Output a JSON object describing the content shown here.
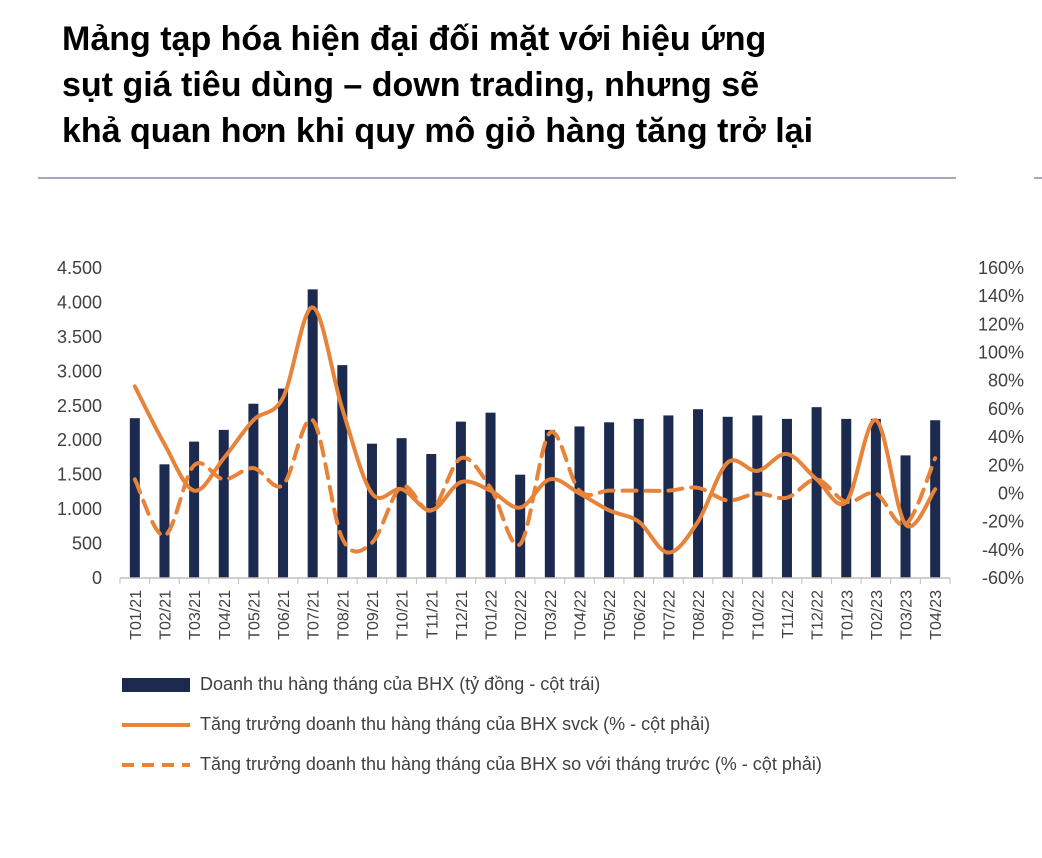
{
  "title_lines": [
    "Mảng tạp hóa hiện đại đối mặt với hiệu ứng",
    "sụt giá tiêu dùng – down trading, nhưng sẽ",
    "khả quan hơn khi quy mô giỏ hàng tăng trở lại"
  ],
  "chart_data": {
    "type": "bar",
    "categories": [
      "T01/21",
      "T02/21",
      "T03/21",
      "T04/21",
      "T05/21",
      "T06/21",
      "T07/21",
      "T08/21",
      "T09/21",
      "T10/21",
      "T11/21",
      "T12/21",
      "T01/22",
      "T02/22",
      "T03/22",
      "T04/22",
      "T05/22",
      "T06/22",
      "T07/22",
      "T08/22",
      "T09/22",
      "T10/22",
      "T11/22",
      "T12/22",
      "T01/23",
      "T02/23",
      "T03/23",
      "T04/23"
    ],
    "y_left": {
      "range": [
        0,
        4500
      ],
      "ticks": [
        0,
        500,
        1000,
        1500,
        2000,
        2500,
        3000,
        3500,
        4000,
        4500
      ],
      "tick_labels": [
        "0",
        "500",
        "1.000",
        "1.500",
        "2.000",
        "2.500",
        "3.000",
        "3.500",
        "4.000",
        "4.500"
      ]
    },
    "y_right": {
      "range": [
        -60,
        160
      ],
      "ticks": [
        -60,
        -40,
        -20,
        0,
        20,
        40,
        60,
        80,
        100,
        120,
        140,
        160
      ],
      "tick_labels": [
        "-60%",
        "-40%",
        "-20%",
        "0%",
        "20%",
        "40%",
        "60%",
        "80%",
        "100%",
        "120%",
        "140%",
        "160%"
      ]
    },
    "series": [
      {
        "name": "Doanh thu hàng tháng của BHX (tỷ đồng - cột trái)",
        "type": "bar",
        "axis": "left",
        "color": "#1b2a4e",
        "values": [
          2320,
          1650,
          1980,
          2150,
          2530,
          2750,
          4190,
          3090,
          1950,
          2030,
          1800,
          2270,
          2400,
          1500,
          2150,
          2200,
          2260,
          2310,
          2360,
          2450,
          2340,
          2360,
          2310,
          2480,
          2310,
          2310,
          1780,
          2290
        ]
      },
      {
        "name": "Tăng trưởng doanh thu hàng tháng của BHX svck (% - cột phải)",
        "type": "line",
        "axis": "right",
        "color": "#e8833a",
        "dash": false,
        "values": [
          76,
          35,
          2,
          25,
          52,
          68,
          132,
          60,
          0,
          3,
          -12,
          8,
          2,
          -10,
          10,
          0,
          -12,
          -20,
          -42,
          -20,
          22,
          16,
          28,
          10,
          -6,
          52,
          -22,
          3
        ]
      },
      {
        "name": "Tăng trưởng doanh thu hàng tháng của BHX so với tháng trước (% - cột phải)",
        "type": "line",
        "axis": "right",
        "color": "#e8833a",
        "dash": true,
        "values": [
          10,
          -30,
          20,
          10,
          18,
          6,
          52,
          -32,
          -35,
          5,
          -12,
          25,
          4,
          -36,
          43,
          2,
          2,
          2,
          2,
          4,
          -5,
          0,
          -3,
          10,
          -6,
          0,
          -22,
          25
        ]
      }
    ],
    "grid": false,
    "legend_position": "bottom"
  }
}
